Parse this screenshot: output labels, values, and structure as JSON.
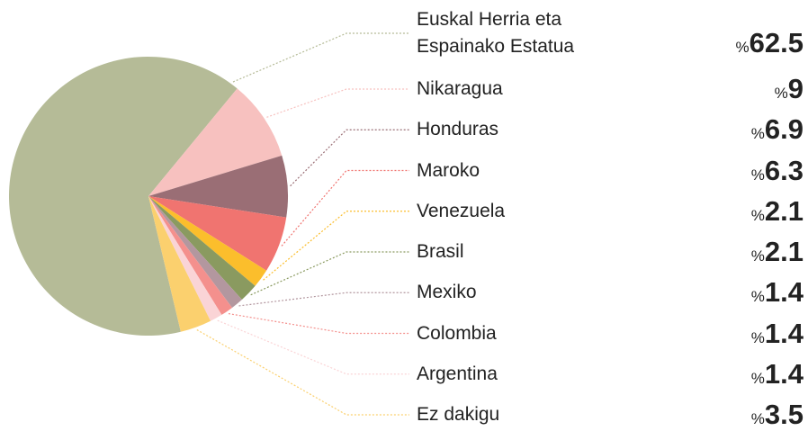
{
  "chart_data": {
    "type": "pie",
    "categories": [
      "Euskal Herria eta Espainako Estatua",
      "Nikaragua",
      "Honduras",
      "Maroko",
      "Venezuela",
      "Brasil",
      "Mexiko",
      "Colombia",
      "Argentina",
      "Ez dakigu"
    ],
    "values": [
      62.5,
      9,
      6.9,
      6.3,
      2.1,
      2.1,
      1.4,
      1.4,
      1.4,
      3.5
    ],
    "value_labels": [
      "%62.5",
      "%9",
      "%6.9",
      "%6.3",
      "%2.1",
      "%2.1",
      "%1.4",
      "%1.4",
      "%1.4",
      "%3.5"
    ],
    "colors": [
      "#b5bb97",
      "#f7c1bf",
      "#9a6e75",
      "#f07470",
      "#fbbe2c",
      "#8a9a60",
      "#b3979f",
      "#f4908d",
      "#fad4d6",
      "#fbd06e"
    ]
  }
}
